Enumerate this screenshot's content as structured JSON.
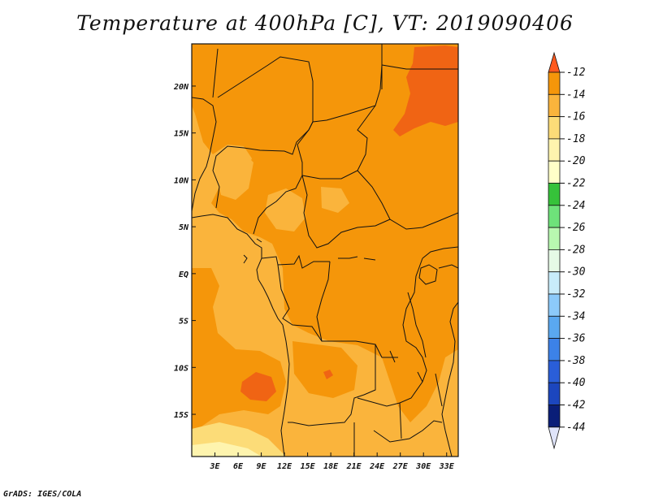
{
  "title": "Temperature at 400hPa [C], VT: 2019090406",
  "footer": "GrADS: IGES/COLA",
  "map": {
    "lon_range": [
      0,
      34.5
    ],
    "lat_range": [
      -19.5,
      24.5
    ],
    "lon_ticks": [
      {
        "value": 3,
        "label": "3E"
      },
      {
        "value": 6,
        "label": "6E"
      },
      {
        "value": 9,
        "label": "9E"
      },
      {
        "value": 12,
        "label": "12E"
      },
      {
        "value": 15,
        "label": "15E"
      },
      {
        "value": 18,
        "label": "18E"
      },
      {
        "value": 21,
        "label": "21E"
      },
      {
        "value": 24,
        "label": "24E"
      },
      {
        "value": 27,
        "label": "27E"
      },
      {
        "value": 30,
        "label": "30E"
      },
      {
        "value": 33,
        "label": "33E"
      }
    ],
    "lat_ticks": [
      {
        "value": 20,
        "label": "20N"
      },
      {
        "value": 15,
        "label": "15N"
      },
      {
        "value": 10,
        "label": "10N"
      },
      {
        "value": 5,
        "label": "5N"
      },
      {
        "value": 0,
        "label": "EQ"
      },
      {
        "value": -5,
        "label": "5S"
      },
      {
        "value": -10,
        "label": "10S"
      },
      {
        "value": -15,
        "label": "15S"
      }
    ]
  },
  "colorbar": {
    "levels": [
      {
        "label": "-12",
        "color": "#f06414"
      },
      {
        "label": "-14",
        "color": "#f5960a"
      },
      {
        "label": "-16",
        "color": "#fab43c"
      },
      {
        "label": "-18",
        "color": "#fcdc78"
      },
      {
        "label": "-20",
        "color": "#fef4ae"
      },
      {
        "label": "-22",
        "color": "#ffffc8"
      },
      {
        "label": "-24",
        "color": "#36c23a"
      },
      {
        "label": "-26",
        "color": "#6ee27a"
      },
      {
        "label": "-28",
        "color": "#b8f8b0"
      },
      {
        "label": "-30",
        "color": "#e6fae6"
      },
      {
        "label": "-32",
        "color": "#c8ecfa"
      },
      {
        "label": "-34",
        "color": "#8ccafa"
      },
      {
        "label": "-36",
        "color": "#5aa8f0"
      },
      {
        "label": "-38",
        "color": "#3c82e8"
      },
      {
        "label": "-40",
        "color": "#2a5ed8"
      },
      {
        "label": "-42",
        "color": "#1c46be"
      },
      {
        "label": "-44",
        "color": "#0a1e78"
      }
    ],
    "top_color": "#ff5a1e",
    "bottom_color": "#dfe4fa"
  },
  "colors": {
    "orange_dark": "#f06414",
    "orange": "#f5960a",
    "orange_light": "#fab43c",
    "yellow": "#fcdc78",
    "pale_yellow": "#fef4ae"
  }
}
